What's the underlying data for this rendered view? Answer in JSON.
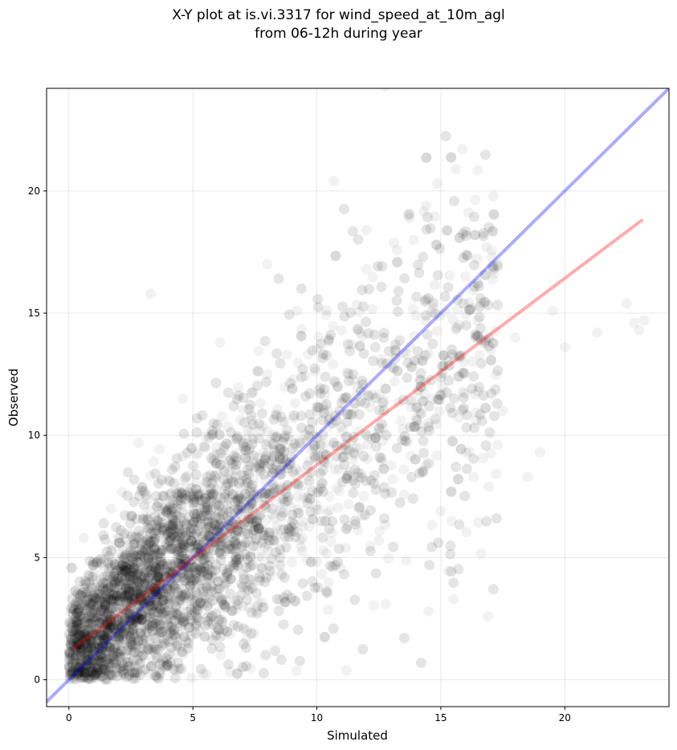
{
  "chart_data": {
    "type": "scatter",
    "title_lines": [
      "X-Y plot at is.vi.3317 for wind_speed_at_10m_agl",
      "from 06-12h during year"
    ],
    "xlabel": "Simulated",
    "ylabel": "Observed",
    "xlim": [
      -0.9,
      24.2
    ],
    "ylim": [
      -1.1,
      24.2
    ],
    "xticks": [
      0,
      5,
      10,
      15,
      20
    ],
    "yticks": [
      0,
      5,
      10,
      15,
      20
    ],
    "grid": true,
    "series": [
      {
        "kind": "points",
        "color": "#000000",
        "description_values": "dense cloud of observed vs simulated wind speed pairs (~6000 points); sample below",
        "x": [
          0.3,
          0.5,
          0.6,
          0.8,
          1.0,
          1.1,
          1.3,
          1.5,
          1.7,
          1.9,
          2.1,
          2.4,
          2.6,
          2.8,
          3.0,
          3.3,
          3.5,
          3.8,
          4.0,
          4.3,
          4.6,
          4.9,
          5.2,
          5.5,
          5.8,
          6.1,
          6.5,
          6.9,
          7.2,
          7.6,
          8.0,
          8.4,
          8.8,
          9.2,
          9.6,
          10.0,
          10.5,
          11.0,
          11.5,
          12.0,
          12.5,
          13.0,
          13.5,
          14.0,
          14.5,
          15.0,
          15.5,
          16.0,
          16.5,
          17.0,
          17.5,
          18.0,
          18.5,
          19.0,
          19.5,
          20.0,
          21.3,
          22.5,
          22.8,
          23.0,
          23.2,
          3.3,
          12.0,
          13.7,
          8.0,
          16.9,
          15.5,
          14.5
        ],
        "y": [
          0.5,
          2.0,
          5.8,
          1.2,
          3.5,
          0.3,
          4.1,
          2.2,
          7.0,
          0.8,
          3.2,
          5.5,
          1.6,
          9.7,
          2.8,
          6.0,
          4.5,
          0.6,
          8.2,
          3.9,
          11.5,
          2.5,
          6.8,
          9.5,
          4.2,
          13.8,
          5.5,
          7.9,
          10.2,
          3.0,
          12.5,
          6.3,
          8.8,
          15.1,
          4.9,
          11.0,
          7.5,
          14.3,
          9.2,
          16.8,
          5.7,
          12.8,
          8.6,
          14.9,
          10.5,
          6.9,
          13.2,
          16.5,
          11.8,
          13.5,
          11.0,
          14.0,
          8.3,
          9.3,
          15.1,
          13.6,
          14.2,
          15.4,
          14.6,
          14.3,
          14.7,
          15.8,
          18.4,
          19.0,
          17.0,
          2.6,
          3.3,
          2.8
        ]
      },
      {
        "kind": "line",
        "name_hidden": "1:1 reference",
        "color": "#0000ff",
        "x": [
          -0.9,
          24.2
        ],
        "y": [
          -0.9,
          24.2
        ]
      },
      {
        "kind": "line",
        "name_hidden": "regression fit",
        "color": "#ff0000",
        "x": [
          0.2,
          23.1
        ],
        "y": [
          1.3,
          18.8
        ]
      }
    ]
  }
}
